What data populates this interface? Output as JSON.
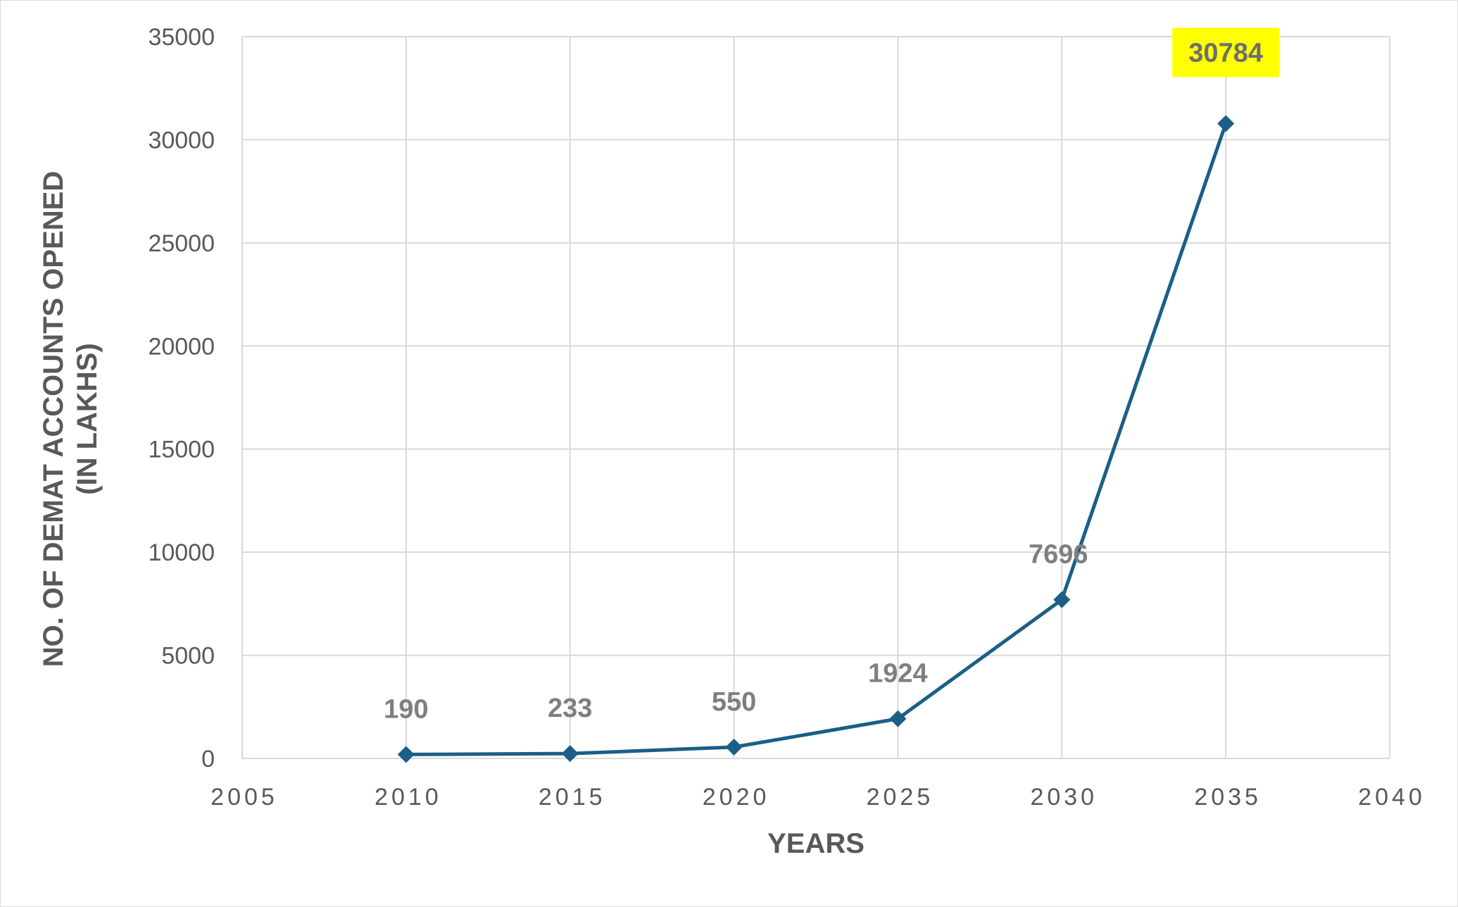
{
  "chart_data": {
    "type": "scatter",
    "title": "",
    "xlabel": "YEARS",
    "ylabel_lines": [
      "NO. OF DEMAT ACCOUNTS OPENED",
      "(IN LAKHS)"
    ],
    "x": [
      2010,
      2015,
      2020,
      2025,
      2030,
      2035
    ],
    "y": [
      190,
      233,
      550,
      1924,
      7696,
      30784
    ],
    "data_labels": [
      "190",
      "233",
      "550",
      "1924",
      "7696",
      "30784"
    ],
    "highlighted_point_index": 5,
    "xlim": [
      2005,
      2040
    ],
    "ylim": [
      0,
      35000
    ],
    "x_ticks": [
      2005,
      2010,
      2015,
      2020,
      2025,
      2030,
      2035,
      2040
    ],
    "y_ticks": [
      0,
      5000,
      10000,
      15000,
      20000,
      25000,
      30000,
      35000
    ],
    "x_tick_labels": [
      "2005",
      "2010",
      "2015",
      "2020",
      "2025",
      "2030",
      "2035",
      "2040"
    ],
    "y_tick_labels": [
      "0",
      "5000",
      "10000",
      "15000",
      "20000",
      "25000",
      "30000",
      "35000"
    ],
    "grid": true,
    "legend": "none",
    "marker": "diamond",
    "colors": {
      "line": "#1b5f86",
      "grid": "#d9d9d9",
      "tick_text": "#595959",
      "axis_title": "#595959",
      "data_label": "#7f7f7f",
      "highlight_fill": "#ffff00"
    }
  }
}
